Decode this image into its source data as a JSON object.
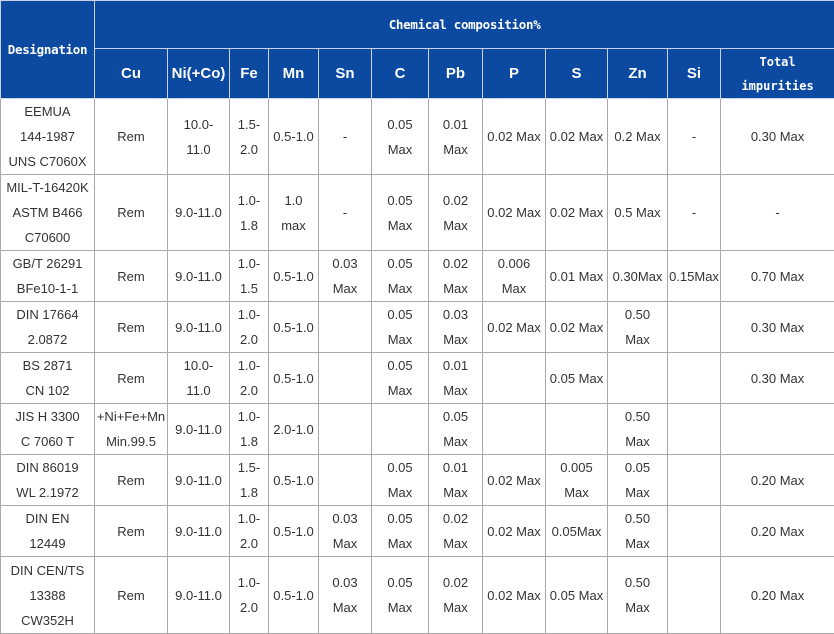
{
  "header": {
    "designation": "Designation",
    "group_title": "Chemical composition%",
    "columns": [
      "Cu",
      "Ni(+Co)",
      "Fe",
      "Mn",
      "Sn",
      "C",
      "Pb",
      "P",
      "S",
      "Zn",
      "Si",
      "Total\nimpurities"
    ]
  },
  "colors": {
    "header_bg": "#0b4aa0",
    "header_text": "#ffffff",
    "border": "#a8a8a8"
  },
  "rows": [
    {
      "designation": "EEMUA\n144-1987\nUNS C7060X",
      "values": [
        "Rem",
        "10.0-\n11.0",
        "1.5-\n2.0",
        "0.5-1.0",
        "-",
        "0.05\nMax",
        "0.01\nMax",
        "0.02 Max",
        "0.02 Max",
        "0.2 Max",
        "-",
        "0.30 Max"
      ]
    },
    {
      "designation": "MIL-T-16420K\nASTM B466\nC70600",
      "values": [
        "Rem",
        "9.0-11.0",
        "1.0-\n1.8",
        "1.0\nmax",
        "-",
        "0.05\nMax",
        "0.02\nMax",
        "0.02 Max",
        "0.02 Max",
        "0.5 Max",
        "-",
        "-"
      ]
    },
    {
      "designation": "GB/T 26291\nBFe10-1-1",
      "values": [
        "Rem",
        "9.0-11.0",
        "1.0-\n1.5",
        "0.5-1.0",
        "0.03\nMax",
        "0.05\nMax",
        "0.02\nMax",
        "0.006\nMax",
        "0.01 Max",
        "0.30Max",
        "0.15Max",
        "0.70  Max"
      ]
    },
    {
      "designation": "DIN 17664\n2.0872",
      "values": [
        "Rem",
        "9.0-11.0",
        "1.0-\n2.0",
        "0.5-1.0",
        "",
        "0.05\nMax",
        "0.03\nMax",
        "0.02 Max",
        "0.02 Max",
        "0.50\nMax",
        "",
        "0.30 Max"
      ]
    },
    {
      "designation": "BS 2871\nCN 102",
      "values": [
        "Rem",
        "10.0-\n11.0",
        "1.0-\n2.0",
        "0.5-1.0",
        "",
        "0.05\nMax",
        "0.01\nMax",
        "",
        "0.05 Max",
        "",
        "",
        "0.30 Max"
      ]
    },
    {
      "designation": "JIS H 3300\nC 7060 T",
      "values": [
        "+Ni+Fe+Mn\nMin.99.5",
        "9.0-11.0",
        "1.0-\n1.8",
        "2.0-1.0",
        "",
        "",
        "0.05\nMax",
        "",
        "",
        "0.50\nMax",
        "",
        ""
      ]
    },
    {
      "designation": "DIN 86019\nWL 2.1972",
      "values": [
        "Rem",
        "9.0-11.0",
        "1.5-\n1.8",
        "0.5-1.0",
        "",
        "0.05\nMax",
        "0.01\nMax",
        "0.02 Max",
        "0.005\nMax",
        "0.05\nMax",
        "",
        "0.20 Max"
      ]
    },
    {
      "designation": "DIN EN\n12449",
      "values": [
        "Rem",
        "9.0-11.0",
        "1.0-\n2.0",
        "0.5-1.0",
        "0.03\nMax",
        "0.05\nMax",
        "0.02\nMax",
        "0.02 Max",
        "0.05Max",
        "0.50\nMax",
        "",
        "0.20 Max"
      ]
    },
    {
      "designation": "DIN CEN/TS\n13388\nCW352H",
      "values": [
        "Rem",
        "9.0-11.0",
        "1.0-\n2.0",
        "0.5-1.0",
        "0.03\nMax",
        "0.05\nMax",
        "0.02\nMax",
        "0.02 Max",
        "0.05 Max",
        "0.50\nMax",
        "",
        "0.20 Max"
      ]
    }
  ]
}
